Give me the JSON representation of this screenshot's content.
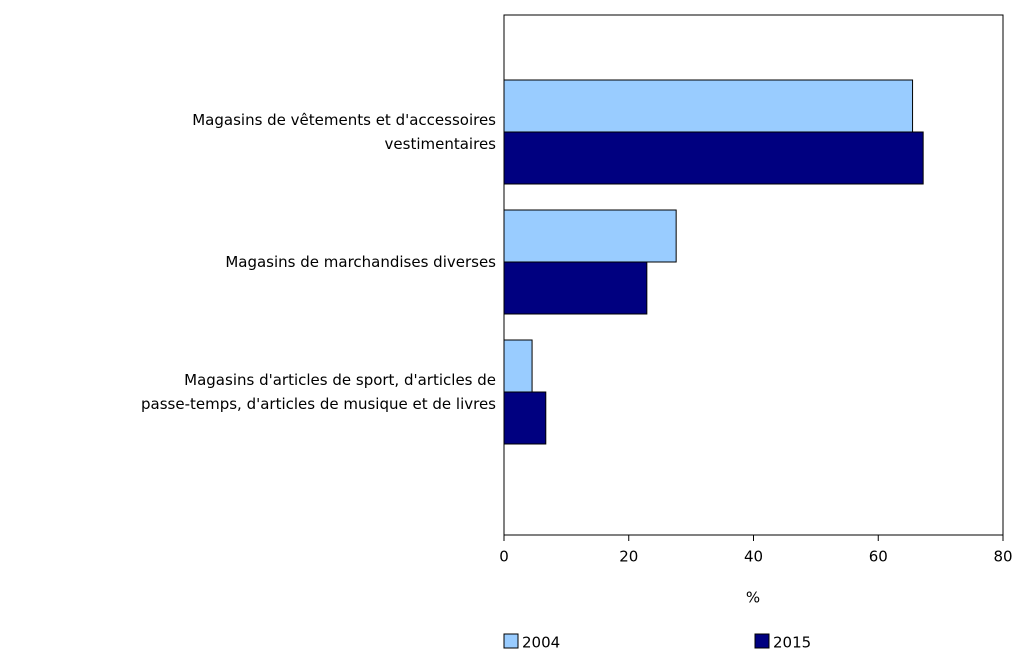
{
  "chart_data": {
    "type": "hbar",
    "categories": [
      "Magasins de vêtements et d'accessoires\nvestimentaires",
      "Magasins de marchandises diverses",
      "Magasins d'articles de sport, d'articles de\npasse-temps, d'articles de musique et de livres"
    ],
    "series": [
      {
        "name": "2004",
        "color": "#99ccff",
        "values": [
          65.5,
          27.6,
          4.5
        ]
      },
      {
        "name": "2015",
        "color": "#000080",
        "values": [
          67.2,
          22.9,
          6.7
        ]
      }
    ],
    "xlabel": "%",
    "xlim": [
      0,
      80
    ],
    "xticks": [
      0,
      20,
      40,
      60,
      80
    ]
  }
}
